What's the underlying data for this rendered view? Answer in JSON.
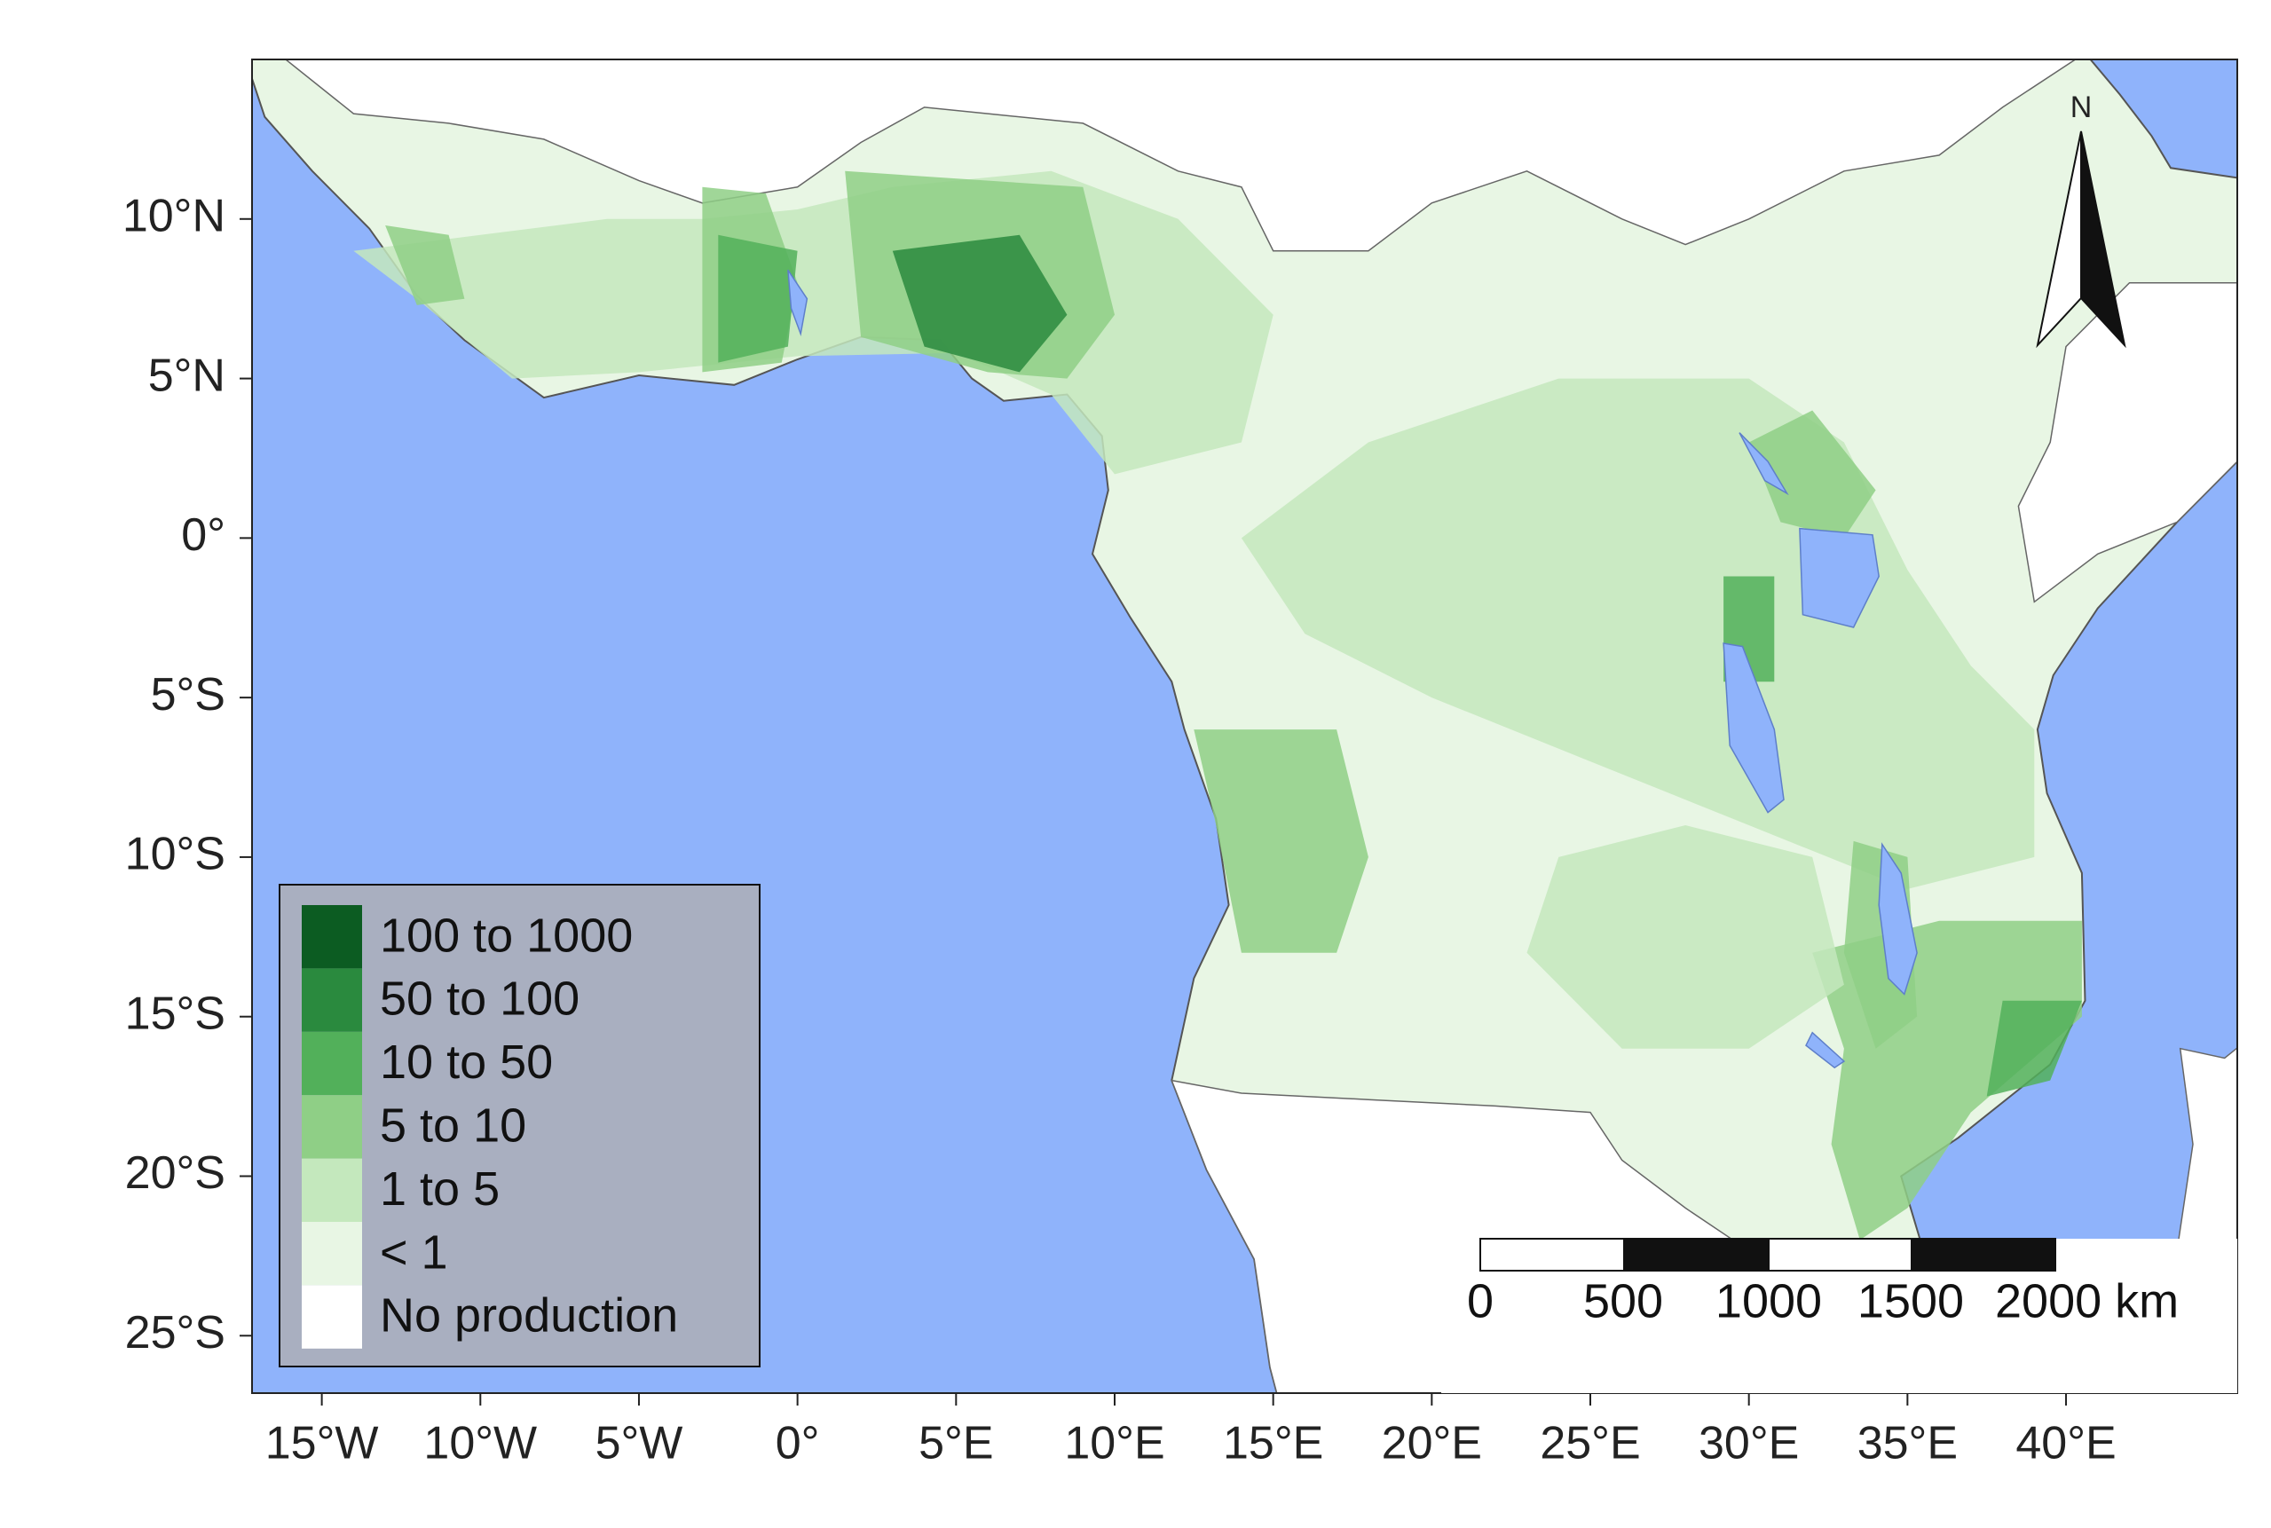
{
  "map": {
    "xlim": [
      -17.2,
      45.4
    ],
    "ylim": [
      -26.8,
      15
    ],
    "xticks": [
      {
        "value": -15,
        "label": "15°W"
      },
      {
        "value": -10,
        "label": "10°W"
      },
      {
        "value": -5,
        "label": "5°W"
      },
      {
        "value": 0,
        "label": "0°"
      },
      {
        "value": 5,
        "label": "5°E"
      },
      {
        "value": 10,
        "label": "10°E"
      },
      {
        "value": 15,
        "label": "15°E"
      },
      {
        "value": 20,
        "label": "20°E"
      },
      {
        "value": 25,
        "label": "25°E"
      },
      {
        "value": 30,
        "label": "30°E"
      },
      {
        "value": 35,
        "label": "35°E"
      },
      {
        "value": 40,
        "label": "40°E"
      }
    ],
    "yticks": [
      {
        "value": 10,
        "label": "10°N"
      },
      {
        "value": 5,
        "label": "5°N"
      },
      {
        "value": 0,
        "label": "0°"
      },
      {
        "value": -5,
        "label": "5°S"
      },
      {
        "value": -10,
        "label": "10°S"
      },
      {
        "value": -15,
        "label": "15°S"
      },
      {
        "value": -20,
        "label": "20°S"
      },
      {
        "value": -25,
        "label": "25°S"
      }
    ],
    "legend": {
      "items": [
        {
          "label": "100 to 1000",
          "color": "#0c5c22"
        },
        {
          "label": "50 to 100",
          "color": "#2a8a3e"
        },
        {
          "label": "10 to 50",
          "color": "#52b05a"
        },
        {
          "label": "5 to 10",
          "color": "#8fcf86"
        },
        {
          "label": "1 to 5",
          "color": "#c4e8bd"
        },
        {
          "label": "< 1",
          "color": "#e8f6e4"
        },
        {
          "label": "No production",
          "color": "#ffffff"
        }
      ]
    },
    "scale_bar": {
      "labels": [
        "0",
        "500",
        "1000",
        "1500",
        "2000 km"
      ]
    },
    "north_label": "N"
  }
}
